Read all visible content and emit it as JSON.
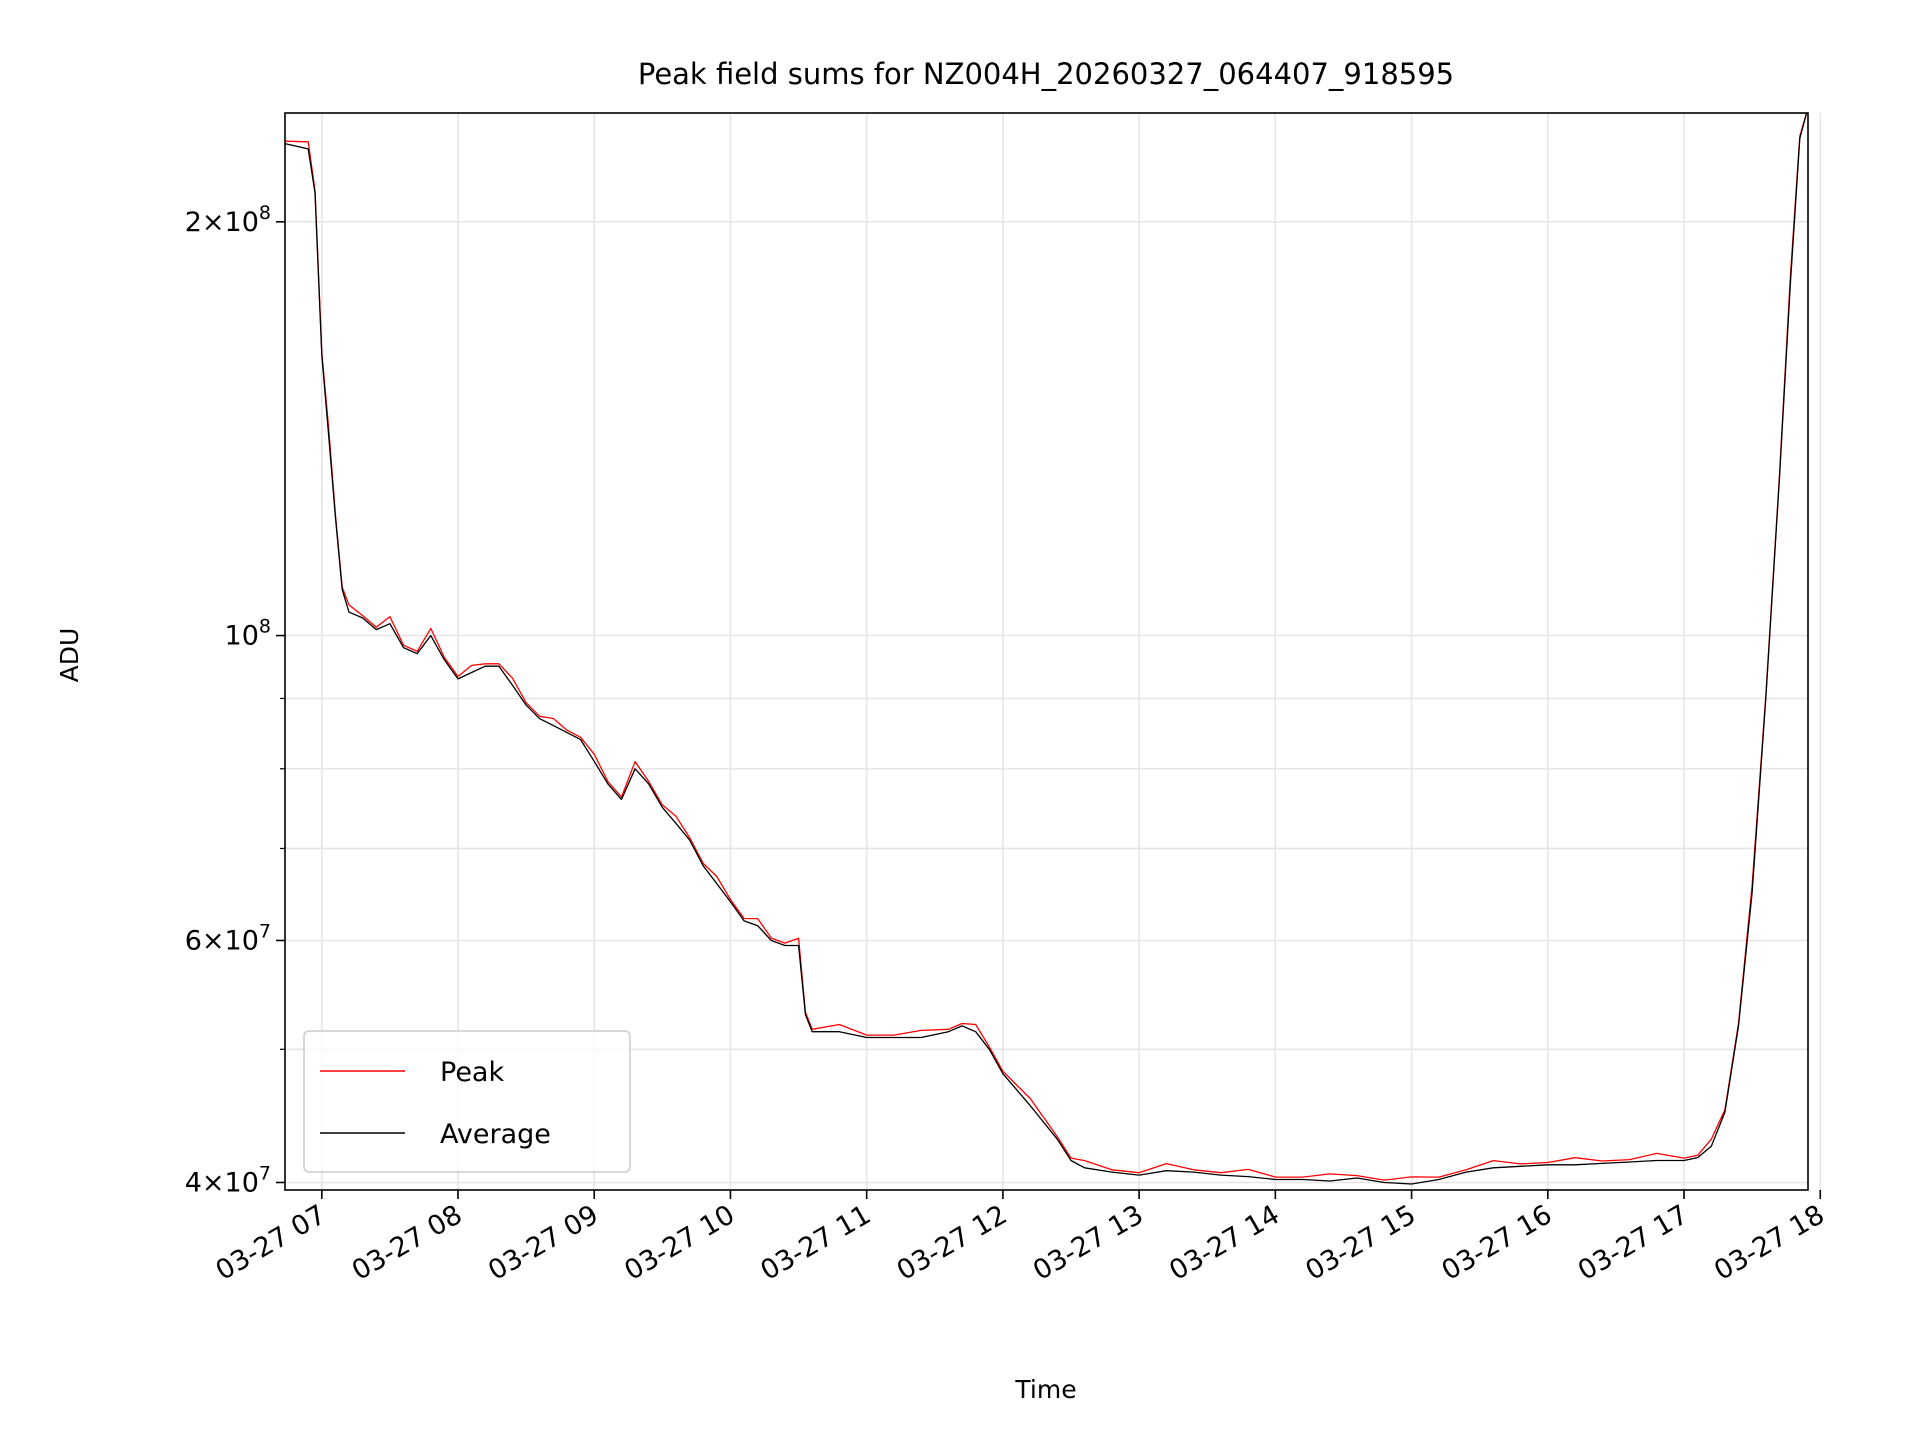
{
  "chart_data": {
    "type": "line",
    "title": "Peak field sums for NZ004H_20260327_064407_918595",
    "xlabel": "Time",
    "ylabel": "ADU",
    "yscale": "log",
    "xlim": [
      6.73,
      17.91
    ],
    "ylim": [
      39500000,
      240000000
    ],
    "grid": true,
    "legend_position": "lower-left",
    "x_unit": "hours on 2026-03-27",
    "x_ticks": [
      {
        "value": 7,
        "label": "03-27 07"
      },
      {
        "value": 8,
        "label": "03-27 08"
      },
      {
        "value": 9,
        "label": "03-27 09"
      },
      {
        "value": 10,
        "label": "03-27 10"
      },
      {
        "value": 11,
        "label": "03-27 11"
      },
      {
        "value": 12,
        "label": "03-27 12"
      },
      {
        "value": 13,
        "label": "03-27 13"
      },
      {
        "value": 14,
        "label": "03-27 14"
      },
      {
        "value": 15,
        "label": "03-27 15"
      },
      {
        "value": 16,
        "label": "03-27 16"
      },
      {
        "value": 17,
        "label": "03-27 17"
      },
      {
        "value": 18,
        "label": "03-27 18"
      }
    ],
    "y_ticks": [
      {
        "value": 40000000,
        "base": "4",
        "exp": "7"
      },
      {
        "value": 60000000,
        "base": "6",
        "exp": "7"
      },
      {
        "value": 100000000,
        "base": "10",
        "exp": "8"
      },
      {
        "value": 200000000,
        "base": "2",
        "exp": "8"
      }
    ],
    "y_minor_ticks": [
      50000000,
      70000000,
      80000000,
      90000000
    ],
    "times_symbol": "×",
    "series": [
      {
        "name": "Peak",
        "color": "#ff0000"
      },
      {
        "name": "Average",
        "color": "#000000"
      }
    ],
    "average_points": [
      [
        6.73,
        228000000
      ],
      [
        6.9,
        226000000
      ],
      [
        6.95,
        210000000
      ],
      [
        7.0,
        160000000
      ],
      [
        7.05,
        140000000
      ],
      [
        7.1,
        122000000
      ],
      [
        7.15,
        108000000
      ],
      [
        7.2,
        104000000
      ],
      [
        7.3,
        103000000
      ],
      [
        7.4,
        101000000
      ],
      [
        7.5,
        102000000
      ],
      [
        7.6,
        98000000
      ],
      [
        7.7,
        97000000
      ],
      [
        7.8,
        100000000
      ],
      [
        7.9,
        96000000
      ],
      [
        8.0,
        93000000
      ],
      [
        8.1,
        94000000
      ],
      [
        8.2,
        95000000
      ],
      [
        8.3,
        95000000
      ],
      [
        8.4,
        92000000
      ],
      [
        8.5,
        89000000
      ],
      [
        8.6,
        87000000
      ],
      [
        8.7,
        86000000
      ],
      [
        8.8,
        85000000
      ],
      [
        8.9,
        84000000
      ],
      [
        9.0,
        81000000
      ],
      [
        9.1,
        78000000
      ],
      [
        9.2,
        76000000
      ],
      [
        9.3,
        80000000
      ],
      [
        9.4,
        78000000
      ],
      [
        9.5,
        75000000
      ],
      [
        9.6,
        73000000
      ],
      [
        9.7,
        71000000
      ],
      [
        9.8,
        68000000
      ],
      [
        9.9,
        66000000
      ],
      [
        10.0,
        64000000
      ],
      [
        10.1,
        62000000
      ],
      [
        10.2,
        61500000
      ],
      [
        10.3,
        60000000
      ],
      [
        10.4,
        59500000
      ],
      [
        10.5,
        59500000
      ],
      [
        10.55,
        53000000
      ],
      [
        10.6,
        51500000
      ],
      [
        10.8,
        51500000
      ],
      [
        11.0,
        51000000
      ],
      [
        11.2,
        51000000
      ],
      [
        11.4,
        51000000
      ],
      [
        11.6,
        51500000
      ],
      [
        11.7,
        52000000
      ],
      [
        11.8,
        51500000
      ],
      [
        11.9,
        50000000
      ],
      [
        12.0,
        48000000
      ],
      [
        12.2,
        45500000
      ],
      [
        12.4,
        43000000
      ],
      [
        12.5,
        41500000
      ],
      [
        12.6,
        41000000
      ],
      [
        12.8,
        40700000
      ],
      [
        13.0,
        40500000
      ],
      [
        13.2,
        40800000
      ],
      [
        13.4,
        40700000
      ],
      [
        13.6,
        40500000
      ],
      [
        13.8,
        40400000
      ],
      [
        14.0,
        40200000
      ],
      [
        14.2,
        40200000
      ],
      [
        14.4,
        40100000
      ],
      [
        14.6,
        40300000
      ],
      [
        14.8,
        40000000
      ],
      [
        15.0,
        39900000
      ],
      [
        15.2,
        40200000
      ],
      [
        15.4,
        40700000
      ],
      [
        15.6,
        41000000
      ],
      [
        15.8,
        41100000
      ],
      [
        16.0,
        41200000
      ],
      [
        16.2,
        41200000
      ],
      [
        16.4,
        41300000
      ],
      [
        16.6,
        41400000
      ],
      [
        16.8,
        41500000
      ],
      [
        17.0,
        41500000
      ],
      [
        17.1,
        41700000
      ],
      [
        17.2,
        42500000
      ],
      [
        17.3,
        45000000
      ],
      [
        17.4,
        52000000
      ],
      [
        17.5,
        65000000
      ],
      [
        17.6,
        90000000
      ],
      [
        17.7,
        130000000
      ],
      [
        17.78,
        180000000
      ],
      [
        17.85,
        230000000
      ],
      [
        17.9,
        240000000
      ]
    ]
  }
}
